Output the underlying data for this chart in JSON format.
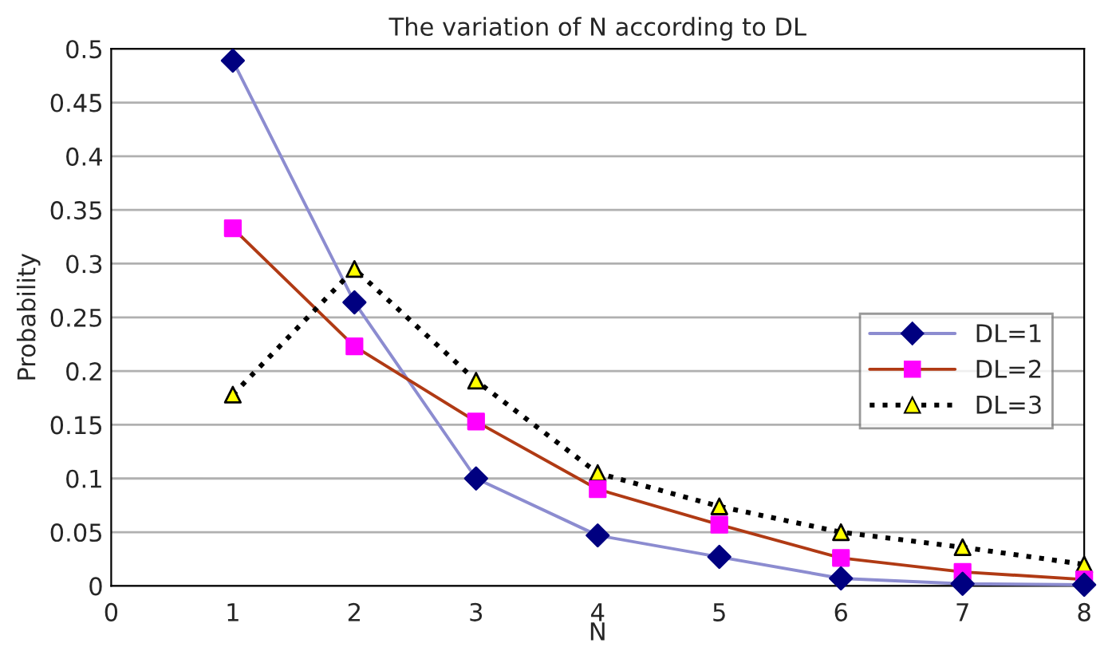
{
  "chart_data": {
    "type": "line",
    "title": "The variation of N according to DL",
    "xlabel": "N",
    "ylabel": "Probability",
    "x": [
      1,
      2,
      3,
      4,
      5,
      6,
      7,
      8
    ],
    "series": [
      {
        "name": "DL=1",
        "color": "#8c8cd0",
        "colors": [
          "#000080",
          "#000080",
          "#000080",
          "#000080",
          "#000080",
          "#000080",
          "#000080",
          "#000080"
        ],
        "marker": "diamond",
        "line_style": "solid",
        "values": [
          0.489,
          0.264,
          0.1,
          0.047,
          0.027,
          0.007,
          0.002,
          0.001
        ]
      },
      {
        "name": "DL=2",
        "color": "#b03a14",
        "colors": [
          "#ff00ff",
          "#ff00ff",
          "#ff00ff",
          "#ff00ff",
          "#ff00ff",
          "#ff00ff",
          "#ff00ff",
          "#ff00ff"
        ],
        "marker": "square",
        "line_style": "solid",
        "values": [
          0.333,
          0.223,
          0.153,
          0.09,
          0.057,
          0.026,
          0.013,
          0.006
        ]
      },
      {
        "name": "DL=3",
        "color": "#000000",
        "colors": [
          "#ffff00",
          "#ffff00",
          "#ffff00",
          "#ffff00",
          "#ffff00",
          "#ffff00",
          "#ffff00",
          "#ffff00"
        ],
        "marker": "triangle",
        "line_style": "dotted",
        "values": [
          0.178,
          0.295,
          0.191,
          0.105,
          0.074,
          0.05,
          0.036,
          0.02
        ]
      }
    ],
    "xlim": [
      0,
      8
    ],
    "xticks": [
      0,
      1,
      2,
      3,
      4,
      5,
      6,
      7,
      8
    ],
    "ylim": [
      0,
      0.5
    ],
    "yticks": [
      0,
      0.05,
      0.1,
      0.15,
      0.2,
      0.25,
      0.3,
      0.35,
      0.4,
      0.45,
      0.5
    ],
    "grid": "y",
    "legend": "right"
  }
}
